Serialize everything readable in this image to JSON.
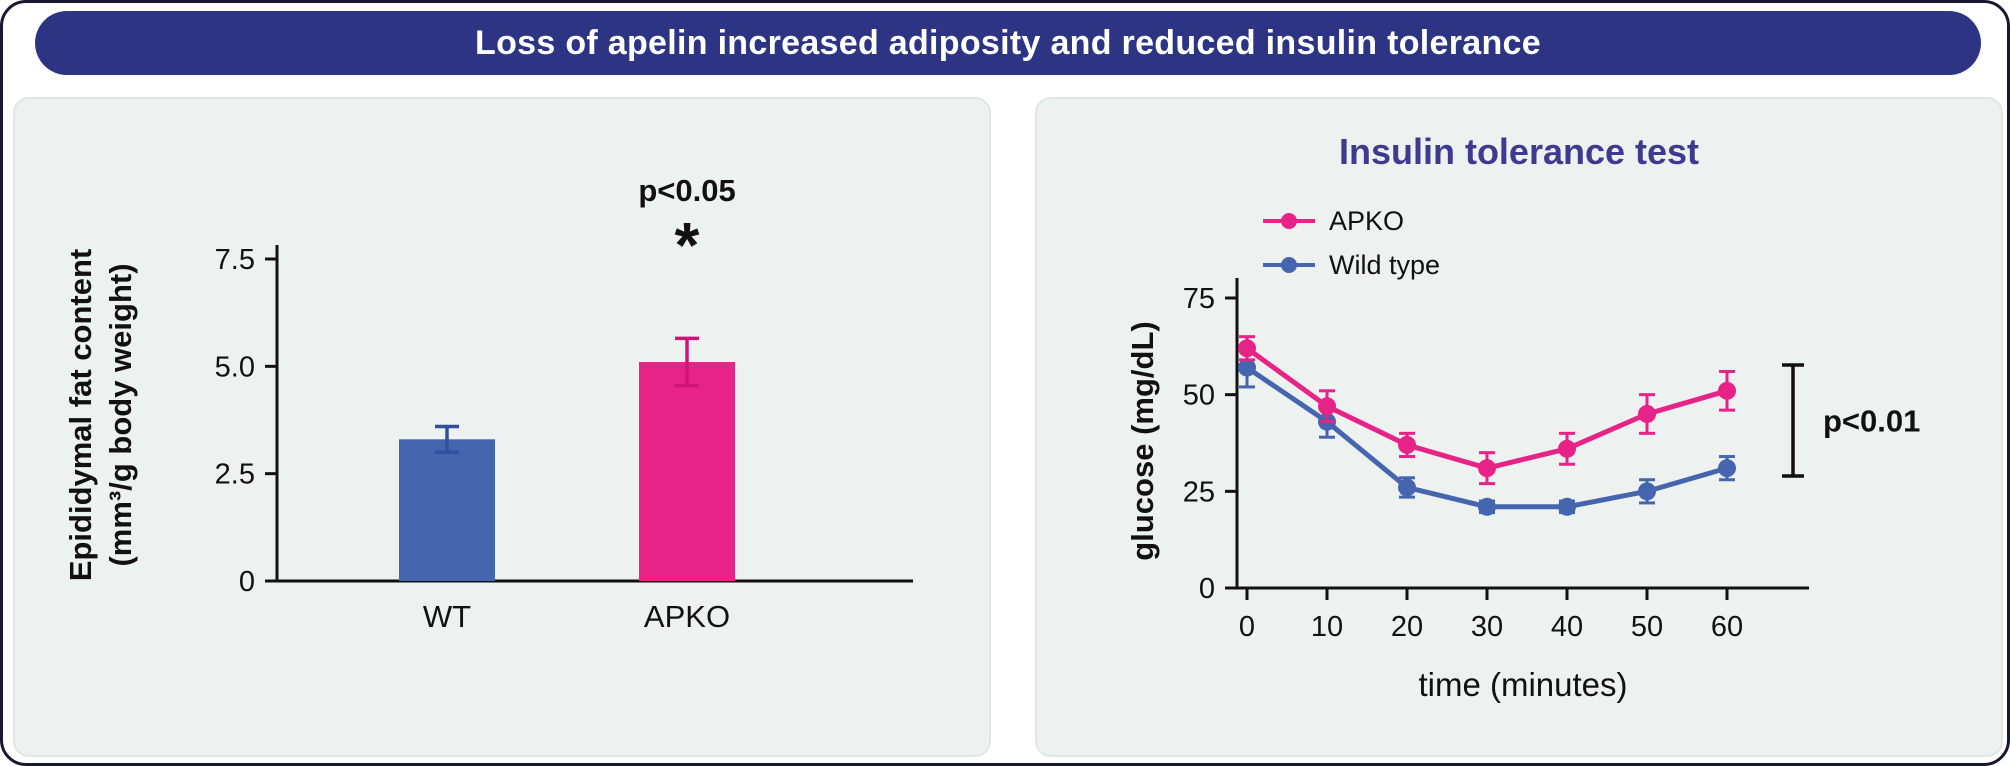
{
  "header": {
    "title": "Loss of apelin increased adiposity and reduced insulin tolerance"
  },
  "colors": {
    "banner_bg": "#2c3483",
    "panel_bg": "#edf1f0",
    "apko_pink": "#e82387",
    "wildtype_blue": "#4565ae",
    "accent_purple": "#3e3a8d",
    "axis_black": "#111111"
  },
  "chart_data": [
    {
      "type": "bar",
      "categories": [
        "WT",
        "APKO"
      ],
      "values": [
        3.3,
        5.1
      ],
      "errors": [
        0.3,
        0.55
      ],
      "bar_colors": [
        "#4565ae",
        "#e82387"
      ],
      "error_colors": [
        "#33509c",
        "#cf1478"
      ],
      "ylabel_line1": "Epididymal fat content",
      "ylabel_line2": "(mm³/g body weight)",
      "yticks": [
        {
          "v": 0,
          "label": "0"
        },
        {
          "v": 2.5,
          "label": "2.5"
        },
        {
          "v": 5,
          "label": "5.0"
        },
        {
          "v": 7.5,
          "label": "7.5"
        }
      ],
      "ylim": [
        0,
        7.5
      ],
      "annotation": {
        "text": "p<0.05",
        "symbol": "*",
        "above_category": "APKO"
      }
    },
    {
      "type": "line",
      "title": "Insulin tolerance test",
      "x": [
        0,
        10,
        20,
        30,
        40,
        50,
        60
      ],
      "series": [
        {
          "name": "APKO",
          "color": "#e82387",
          "values": [
            62,
            47,
            37,
            31,
            36,
            45,
            51
          ],
          "errors": [
            3,
            4,
            3,
            4,
            4,
            5,
            5
          ]
        },
        {
          "name": "Wild type",
          "color": "#4565ae",
          "values": [
            57,
            43,
            26,
            21,
            21,
            25,
            31
          ],
          "errors": [
            5,
            4,
            2.5,
            1.5,
            1.5,
            3,
            3
          ]
        }
      ],
      "xlabel": "time (minutes)",
      "ylabel": "glucose (mg/dL)",
      "yticks": [
        {
          "v": 0,
          "label": "0"
        },
        {
          "v": 25,
          "label": "25"
        },
        {
          "v": 50,
          "label": "50"
        },
        {
          "v": 75,
          "label": "75"
        }
      ],
      "ylim": [
        0,
        80
      ],
      "xlim": [
        0,
        65
      ],
      "annotation": "p<0.01",
      "legend_position": "top-left"
    }
  ]
}
